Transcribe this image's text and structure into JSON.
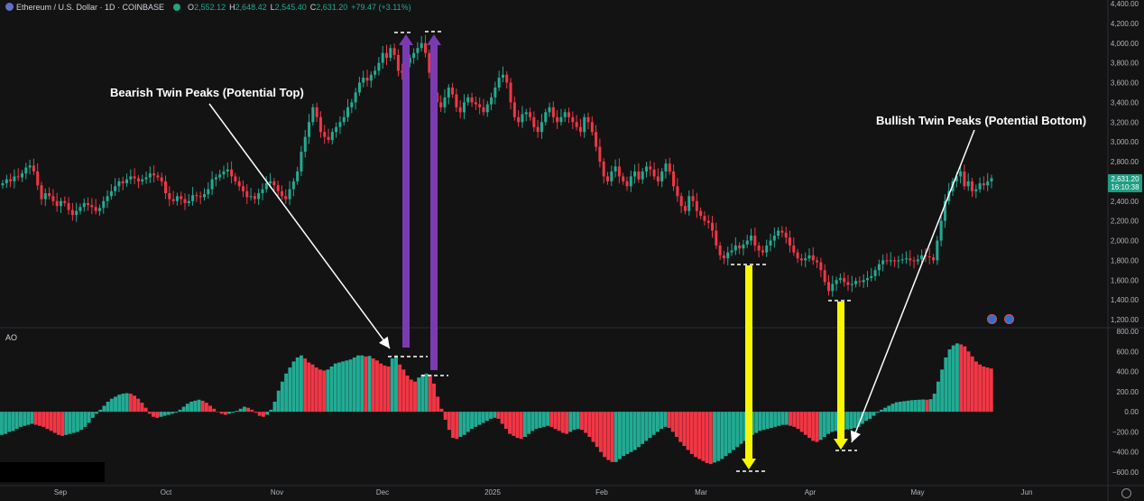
{
  "header": {
    "symbol": "Ethereum / U.S. Dollar · 1D · COINBASE",
    "o_label": "O",
    "o": "2,552.12",
    "h_label": "H",
    "h": "2,648.42",
    "l_label": "L",
    "l": "2,545.40",
    "c_label": "C",
    "c": "2,631.20",
    "change": "+79.47 (+3.11%)"
  },
  "indicator_label": "AO",
  "annotations": {
    "bearish": "Bearish Twin Peaks (Potential Top)",
    "bullish": "Bullish Twin Peaks (Potential Bottom)"
  },
  "price_tag": {
    "price": "2,631.20",
    "countdown": "16:10:38"
  },
  "colors": {
    "up": "#22ab94",
    "down": "#f23645",
    "purple_arrow": "#7b3bb0",
    "yellow_arrow": "#f7f700",
    "tag": "#1e9e83"
  },
  "chart_data": [
    {
      "type": "candlestick",
      "title": "Ethereum / U.S. Dollar · 1D · COINBASE",
      "y_ticks": [
        4400,
        4200,
        4000,
        3800,
        3600,
        3400,
        3200,
        3000,
        2800,
        2600,
        2400,
        2200,
        2000,
        1800,
        1600,
        1400,
        1200
      ],
      "x_ticks": [
        "Sep",
        "Oct",
        "Nov",
        "Dec",
        "2025",
        "Feb",
        "Mar",
        "Apr",
        "May",
        "Jun"
      ],
      "ylim": [
        1120,
        4420
      ],
      "close_series": [
        2580,
        2620,
        2600,
        2650,
        2640,
        2680,
        2740,
        2760,
        2700,
        2560,
        2420,
        2480,
        2450,
        2400,
        2350,
        2400,
        2380,
        2310,
        2260,
        2300,
        2340,
        2380,
        2360,
        2340,
        2300,
        2330,
        2400,
        2450,
        2500,
        2550,
        2600,
        2580,
        2620,
        2650,
        2630,
        2600,
        2620,
        2640,
        2680,
        2660,
        2640,
        2600,
        2480,
        2420,
        2400,
        2450,
        2420,
        2380,
        2400,
        2460,
        2450,
        2440,
        2470,
        2520,
        2620,
        2640,
        2670,
        2700,
        2720,
        2650,
        2600,
        2550,
        2500,
        2440,
        2450,
        2420,
        2480,
        2520,
        2580,
        2600,
        2560,
        2500,
        2450,
        2420,
        2520,
        2600,
        2700,
        2900,
        3050,
        3200,
        3350,
        3250,
        3100,
        3050,
        3020,
        3100,
        3150,
        3200,
        3250,
        3350,
        3400,
        3500,
        3600,
        3650,
        3620,
        3680,
        3720,
        3800,
        3900,
        3850,
        3950,
        3880,
        3720,
        3700,
        3800,
        3850,
        3900,
        3950,
        4000,
        3900,
        3700,
        3500,
        3400,
        3350,
        3450,
        3550,
        3480,
        3350,
        3300,
        3400,
        3450,
        3400,
        3380,
        3350,
        3300,
        3380,
        3450,
        3550,
        3650,
        3680,
        3600,
        3400,
        3250,
        3200,
        3280,
        3300,
        3250,
        3150,
        3100,
        3200,
        3300,
        3350,
        3250,
        3200,
        3250,
        3300,
        3250,
        3200,
        3150,
        3100,
        3250,
        3200,
        3100,
        2950,
        2800,
        2650,
        2600,
        2700,
        2750,
        2650,
        2600,
        2550,
        2650,
        2700,
        2620,
        2700,
        2750,
        2720,
        2650,
        2600,
        2700,
        2780,
        2700,
        2550,
        2450,
        2350,
        2300,
        2450,
        2400,
        2300,
        2250,
        2200,
        2180,
        2100,
        1950,
        1850,
        1820,
        1880,
        1900,
        1950,
        1920,
        1960,
        2000,
        2050,
        1950,
        1900,
        1880,
        1950,
        2000,
        2050,
        2100,
        2080,
        2030,
        1950,
        1880,
        1820,
        1800,
        1820,
        1850,
        1800,
        1780,
        1700,
        1580,
        1490,
        1560,
        1600,
        1620,
        1580,
        1550,
        1560,
        1590,
        1580,
        1600,
        1620,
        1640,
        1700,
        1760,
        1800,
        1790,
        1800,
        1790,
        1800,
        1810,
        1820,
        1800,
        1790,
        1810,
        1850,
        1840,
        1830,
        1800,
        2000,
        2200,
        2400,
        2500,
        2600,
        2650,
        2700,
        2550,
        2600,
        2500,
        2520,
        2580,
        2560,
        2600,
        2631
      ]
    },
    {
      "type": "bar",
      "title": "AO",
      "y_ticks": [
        800,
        600,
        400,
        200,
        0,
        -200,
        -400,
        -600
      ],
      "ylim": [
        -650,
        850
      ],
      "values": [
        -230,
        -220,
        -200,
        -190,
        -170,
        -150,
        -140,
        -130,
        -120,
        -130,
        -140,
        -150,
        -170,
        -190,
        -210,
        -230,
        -240,
        -230,
        -220,
        -210,
        -200,
        -180,
        -150,
        -110,
        -60,
        -20,
        20,
        60,
        100,
        130,
        150,
        170,
        180,
        185,
        180,
        160,
        130,
        90,
        40,
        -20,
        -50,
        -60,
        -50,
        -40,
        -30,
        -20,
        -10,
        20,
        50,
        80,
        100,
        110,
        120,
        110,
        90,
        60,
        30,
        0,
        -20,
        -30,
        -20,
        -10,
        10,
        30,
        50,
        40,
        20,
        -10,
        -40,
        -50,
        -30,
        20,
        100,
        210,
        300,
        380,
        440,
        500,
        540,
        560,
        530,
        490,
        470,
        440,
        420,
        410,
        420,
        450,
        480,
        490,
        500,
        510,
        520,
        540,
        560,
        560,
        550,
        555,
        530,
        510,
        480,
        460,
        450,
        530,
        560,
        470,
        420,
        360,
        320,
        300,
        340,
        370,
        380,
        370,
        280,
        150,
        30,
        -80,
        -180,
        -260,
        -270,
        -250,
        -230,
        -200,
        -170,
        -150,
        -130,
        -110,
        -90,
        -70,
        -60,
        -70,
        -120,
        -170,
        -220,
        -240,
        -260,
        -270,
        -250,
        -220,
        -190,
        -170,
        -160,
        -150,
        -140,
        -150,
        -170,
        -190,
        -210,
        -220,
        -200,
        -180,
        -170,
        -180,
        -210,
        -250,
        -300,
        -350,
        -400,
        -450,
        -480,
        -500,
        -500,
        -470,
        -440,
        -420,
        -400,
        -380,
        -350,
        -320,
        -290,
        -260,
        -230,
        -200,
        -170,
        -150,
        -160,
        -200,
        -250,
        -300,
        -340,
        -380,
        -420,
        -450,
        -470,
        -490,
        -510,
        -520,
        -505,
        -490,
        -470,
        -440,
        -410,
        -380,
        -350,
        -320,
        -290,
        -260,
        -230,
        -210,
        -190,
        -180,
        -170,
        -160,
        -150,
        -140,
        -130,
        -130,
        -140,
        -150,
        -170,
        -200,
        -230,
        -260,
        -290,
        -300,
        -280,
        -250,
        -220,
        -200,
        -190,
        -185,
        -180,
        -175,
        -170,
        -160,
        -150,
        -120,
        -90,
        -70,
        -40,
        -10,
        20,
        40,
        60,
        80,
        95,
        100,
        105,
        110,
        115,
        118,
        120,
        122,
        120,
        125,
        180,
        300,
        420,
        540,
        620,
        660,
        680,
        670,
        650,
        600,
        550,
        500,
        470,
        450,
        440,
        430
      ]
    }
  ]
}
